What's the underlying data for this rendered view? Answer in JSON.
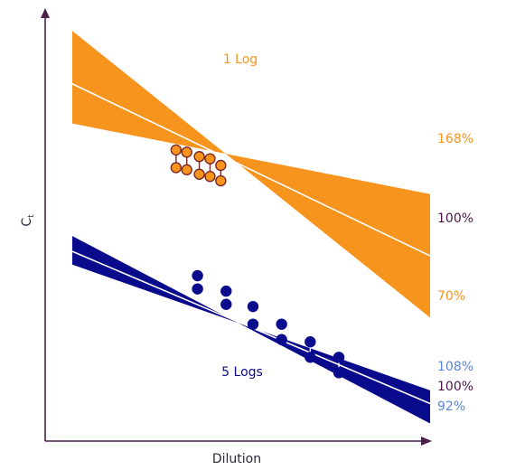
{
  "colors": {
    "orange": "#F7941D",
    "navy": "#0A0A8C",
    "axis": "#4a1f4a",
    "light_blue": "#5B86D8",
    "dark_purple": "#4A154B",
    "dot_edge": "#7A2A2A",
    "white": "#FFFFFF"
  },
  "chart_data": {
    "type": "scatter",
    "xlabel": "Dilution",
    "ylabel": "Ct",
    "grid": false,
    "legend": "none",
    "series": [
      {
        "name": "1 Log",
        "color": "#F7941D",
        "band_labels": {
          "upper": "168%",
          "center": "100%",
          "lower": "70%"
        },
        "band": {
          "x": [
            0,
            1
          ],
          "upper": [
            0.93,
            0.56
          ],
          "center": [
            0.81,
            0.42
          ],
          "lower": [
            0.72,
            0.28
          ]
        },
        "replicate_pairs": [
          {
            "x": 0.29,
            "high": 0.66,
            "low": 0.62
          },
          {
            "x": 0.32,
            "high": 0.655,
            "low": 0.615
          },
          {
            "x": 0.355,
            "high": 0.645,
            "low": 0.605
          },
          {
            "x": 0.385,
            "high": 0.64,
            "low": 0.6
          },
          {
            "x": 0.415,
            "high": 0.625,
            "low": 0.59
          }
        ]
      },
      {
        "name": "5 Logs",
        "color": "#0A0A8C",
        "band_labels": {
          "upper": "108%",
          "center": "100%",
          "lower": "92%"
        },
        "band": {
          "x": [
            0,
            1
          ],
          "upper": [
            0.465,
            0.115
          ],
          "center": [
            0.43,
            0.085
          ],
          "lower": [
            0.4,
            0.04
          ]
        },
        "replicate_pairs": [
          {
            "x": 0.35,
            "high": 0.375,
            "low": 0.345
          },
          {
            "x": 0.43,
            "high": 0.34,
            "low": 0.31
          },
          {
            "x": 0.505,
            "high": 0.305,
            "low": 0.265
          },
          {
            "x": 0.585,
            "high": 0.265,
            "low": 0.23
          },
          {
            "x": 0.665,
            "high": 0.225,
            "low": 0.19
          },
          {
            "x": 0.745,
            "high": 0.19,
            "low": 0.155
          }
        ]
      }
    ],
    "annotations": [
      "1 Log",
      "5 Logs"
    ]
  }
}
